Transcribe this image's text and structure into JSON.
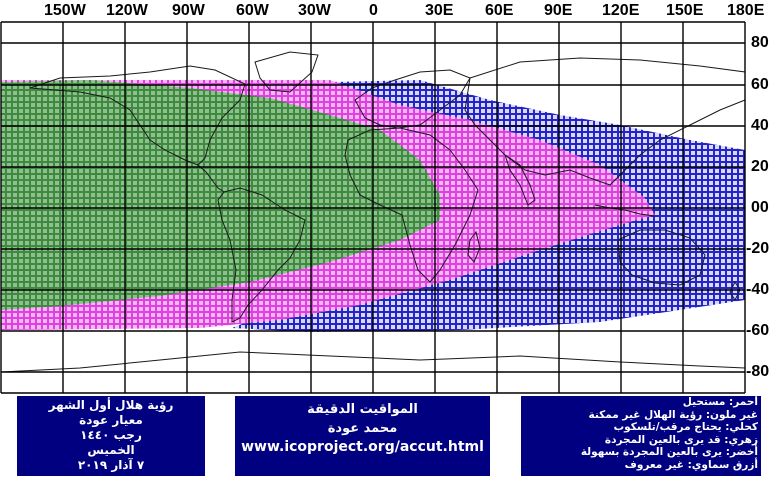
{
  "map": {
    "lon_labels": [
      "150W",
      "120W",
      "90W",
      "60W",
      "30W",
      "0",
      "30E",
      "60E",
      "90E",
      "120E",
      "150E",
      "180E"
    ],
    "lat_labels": [
      "80",
      "60",
      "40",
      "20",
      "00",
      "-20",
      "-40",
      "-60",
      "-80"
    ],
    "colors": {
      "green": "#2d7a2d",
      "magenta": "#e040e0",
      "blue": "#2020c0",
      "coast": "#202020",
      "grid": "#000000",
      "box": "#000080"
    },
    "visibility_zones": [
      {
        "zone": "naked-eye-easy",
        "color": "green"
      },
      {
        "zone": "naked-eye-possible",
        "color": "magenta"
      },
      {
        "zone": "optical-aid-needed",
        "color": "blue"
      }
    ]
  },
  "info_left": {
    "line1": "رؤية هلال أول الشهر",
    "line2": "معيار عودة",
    "line3": "رجب ١٤٤٠",
    "line4": "الخميس",
    "line5": "٧ آذار ٢٠١٩"
  },
  "info_mid": {
    "line1": "المواقيت الدقيقة",
    "line2": "محمد عودة",
    "url": "www.icoproject.org/accut.html"
  },
  "legend": {
    "l1": "أحمر: مستحيل",
    "l2": "غير ملون: رؤية الهلال غير ممكنة",
    "l3": "كحلي: يحتاج مرقب/تلسكوب",
    "l4": "زهري: قد يرى بالعين المجردة",
    "l5": "أخضر: يرى بالعين المجردة بسهولة",
    "l6": "أزرق سماوي: غير معروف"
  }
}
